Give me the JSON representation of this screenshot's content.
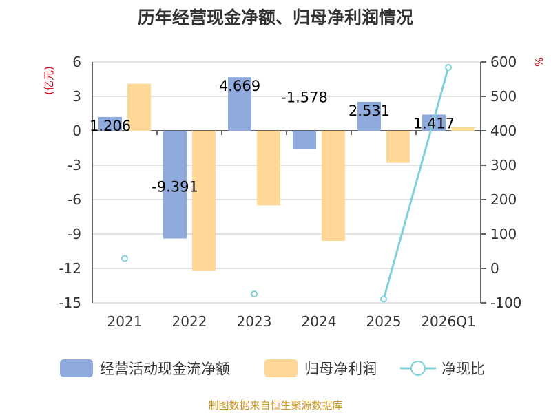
{
  "chart_data": {
    "type": "bar",
    "title": "历年经营现金净额、归母净利润情况",
    "categories": [
      "2021",
      "2022",
      "2023",
      "2024",
      "2025",
      "2026Q1"
    ],
    "series": [
      {
        "name": "经营活动现金流净额",
        "type": "bar",
        "axis": "left",
        "color": "#8faadc",
        "values": [
          1.206,
          -9.391,
          4.669,
          -1.578,
          2.531,
          1.417
        ],
        "labels": [
          "1.206",
          "-9.391",
          "4.669",
          "-1.578",
          "2.531",
          "1.417"
        ]
      },
      {
        "name": "归母净利润",
        "type": "bar",
        "axis": "left",
        "color": "#ffd898",
        "values": [
          4.1,
          -12.2,
          -6.5,
          -9.6,
          -2.8,
          0.3
        ]
      },
      {
        "name": "净现比",
        "type": "line",
        "axis": "right",
        "color": "#7fd0d8",
        "values": [
          29,
          null,
          -74,
          null,
          -89,
          584
        ]
      }
    ],
    "left_axis": {
      "unit": "(亿元)",
      "ylim": [
        -15,
        6
      ],
      "ticks": [
        6,
        3,
        0,
        -3,
        -6,
        -9,
        -12,
        -15
      ],
      "tick_labels": [
        "6",
        "3",
        "0",
        "-3",
        "-6",
        "-9",
        "-12",
        "-15"
      ]
    },
    "right_axis": {
      "unit": "%",
      "ylim": [
        -100,
        600
      ],
      "ticks": [
        600,
        500,
        400,
        300,
        200,
        100,
        0,
        -100
      ],
      "tick_labels": [
        "600",
        "500",
        "400",
        "300",
        "200",
        "100",
        "0",
        "-100"
      ]
    },
    "legend_position": "bottom",
    "grid": true
  },
  "source": "制图数据来自恒生聚源数据库"
}
